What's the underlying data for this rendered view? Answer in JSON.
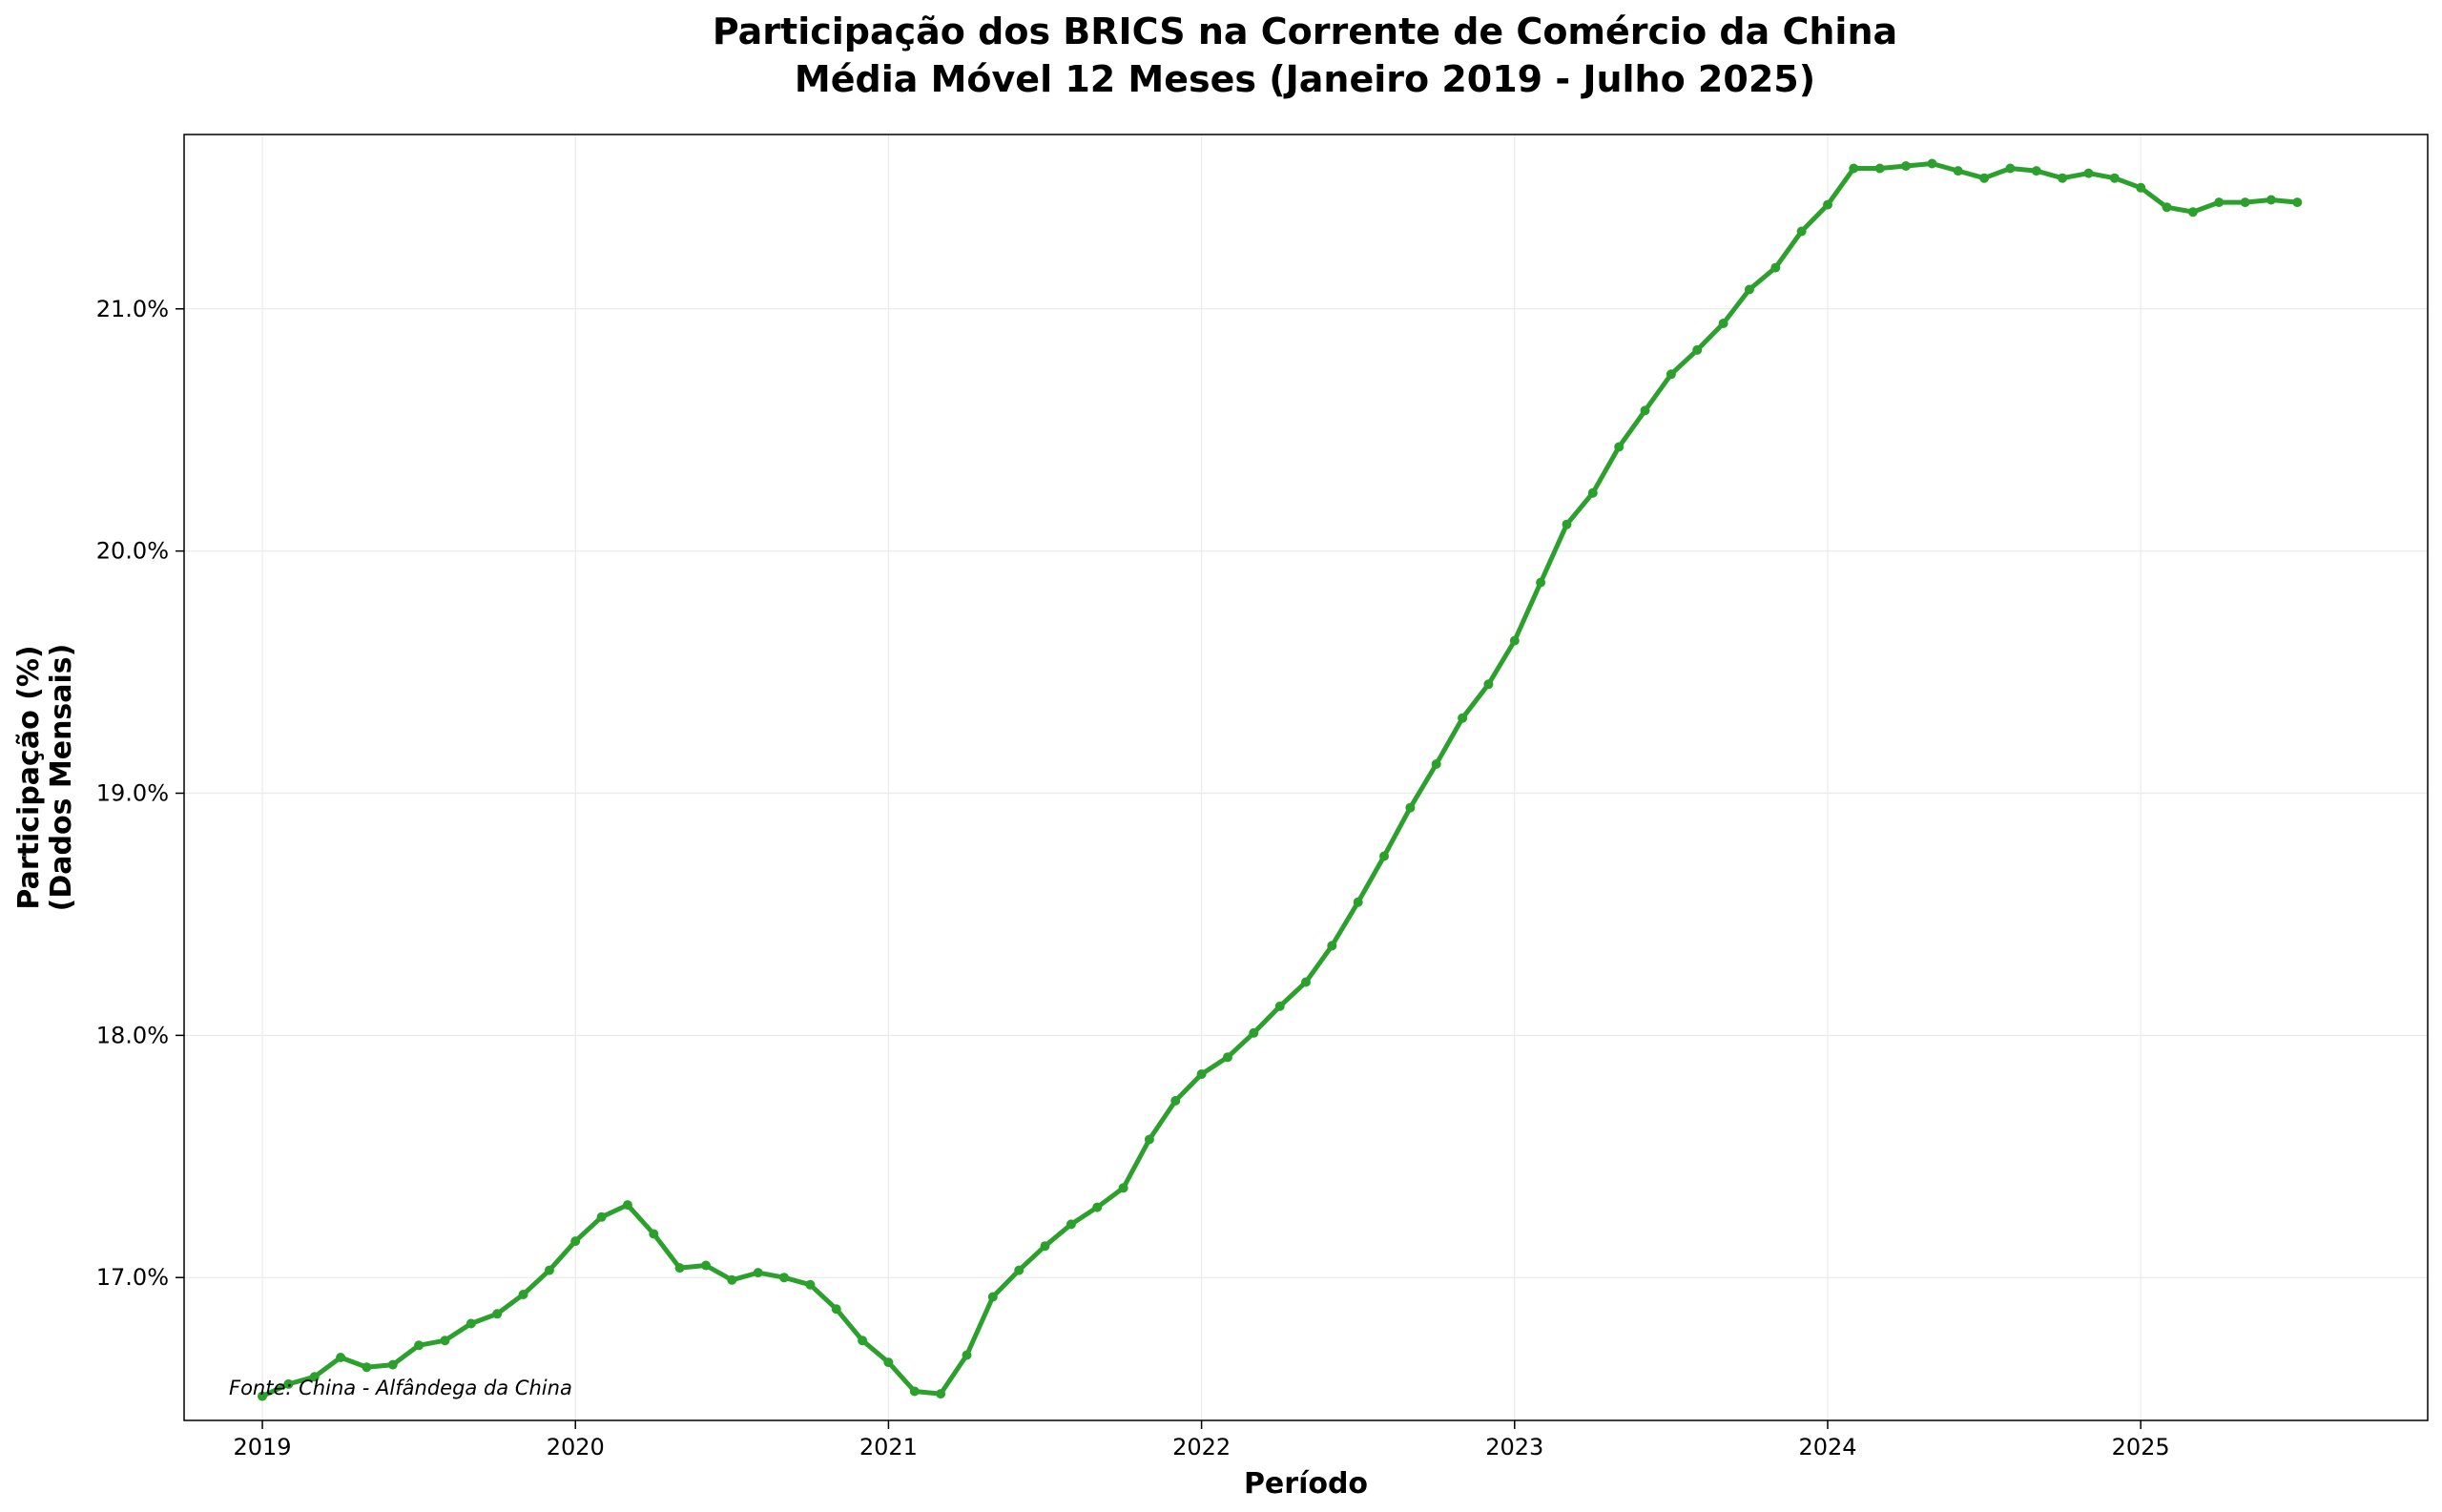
{
  "chart_data": {
    "type": "line",
    "title": "Participação dos BRICS na Corrente de Comércio da China",
    "subtitle": "Média Móvel 12 Meses (Janeiro 2019 - Julho 2025)",
    "xlabel": "Período",
    "ylabel_line1": "Participação (%)",
    "ylabel_line2": "(Dados Mensais)",
    "source_note": "Fonte: China - Alfândega da China",
    "color": "#2ca02c",
    "grid": true,
    "x_start": "2019-01",
    "x_end": "2025-07",
    "xlim": [
      "2018-10",
      "2025-12"
    ],
    "ylim": [
      16.41,
      21.72
    ],
    "x_ticks": [
      {
        "label": "2019",
        "date": "2019-01"
      },
      {
        "label": "2020",
        "date": "2020-01"
      },
      {
        "label": "2021",
        "date": "2021-01"
      },
      {
        "label": "2022",
        "date": "2022-01"
      },
      {
        "label": "2023",
        "date": "2023-01"
      },
      {
        "label": "2024",
        "date": "2024-01"
      },
      {
        "label": "2025",
        "date": "2025-01"
      }
    ],
    "y_ticks": [
      {
        "label": "17.0%",
        "value": 17.0
      },
      {
        "label": "18.0%",
        "value": 18.0
      },
      {
        "label": "19.0%",
        "value": 19.0
      },
      {
        "label": "20.0%",
        "value": 20.0
      },
      {
        "label": "21.0%",
        "value": 21.0
      }
    ],
    "series": [
      {
        "values": [
          16.51,
          16.56,
          16.59,
          16.67,
          16.63,
          16.64,
          16.72,
          16.74,
          16.81,
          16.85,
          16.93,
          17.03,
          17.15,
          17.25,
          17.3,
          17.18,
          17.04,
          17.05,
          16.99,
          17.02,
          17.0,
          16.97,
          16.87,
          16.74,
          16.65,
          16.53,
          16.52,
          16.68,
          16.92,
          17.03,
          17.13,
          17.22,
          17.29,
          17.37,
          17.57,
          17.73,
          17.84,
          17.91,
          18.01,
          18.12,
          18.22,
          18.37,
          18.55,
          18.74,
          18.94,
          19.12,
          19.31,
          19.45,
          19.63,
          19.87,
          20.11,
          20.24,
          20.43,
          20.58,
          20.73,
          20.83,
          20.94,
          21.08,
          21.17,
          21.32,
          21.43,
          21.58,
          21.58,
          21.59,
          21.6,
          21.57,
          21.54,
          21.58,
          21.57,
          21.54,
          21.56,
          21.54,
          21.5,
          21.42,
          21.4,
          21.44,
          21.44,
          21.45,
          21.44
        ]
      }
    ]
  }
}
